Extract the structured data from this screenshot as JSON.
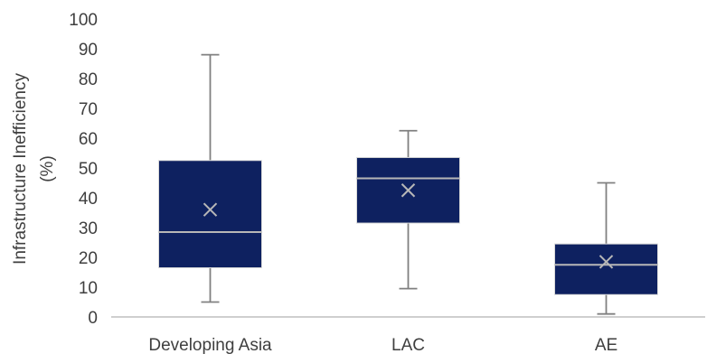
{
  "chart_data": {
    "type": "box",
    "categories": [
      "Developing Asia",
      "LAC",
      "AE"
    ],
    "boxes": [
      {
        "category": "Developing Asia",
        "min": 5,
        "q1": 16.5,
        "median": 28.5,
        "q3": 52.5,
        "max": 88,
        "mean": 36
      },
      {
        "category": "LAC",
        "min": 9.5,
        "q1": 31.5,
        "median": 46.5,
        "q3": 53.5,
        "max": 62.5,
        "mean": 42.5
      },
      {
        "category": "AE",
        "min": 1,
        "q1": 7.5,
        "median": 17.5,
        "q3": 24.5,
        "max": 45,
        "mean": 18.5
      }
    ],
    "ylabel": "Infrastructure Inefficiency\n(%)",
    "ylim": [
      0,
      100
    ],
    "yticks": [
      0,
      10,
      20,
      30,
      40,
      50,
      60,
      70,
      80,
      90,
      100
    ],
    "grid": false,
    "colors": {
      "box_fill": "#0e2160",
      "whisker": "#808080",
      "median": "#b7b7b7",
      "mean_marker": "#b7b7b7",
      "axis": "#bfbfbf",
      "text": "#3f3f3f"
    }
  }
}
